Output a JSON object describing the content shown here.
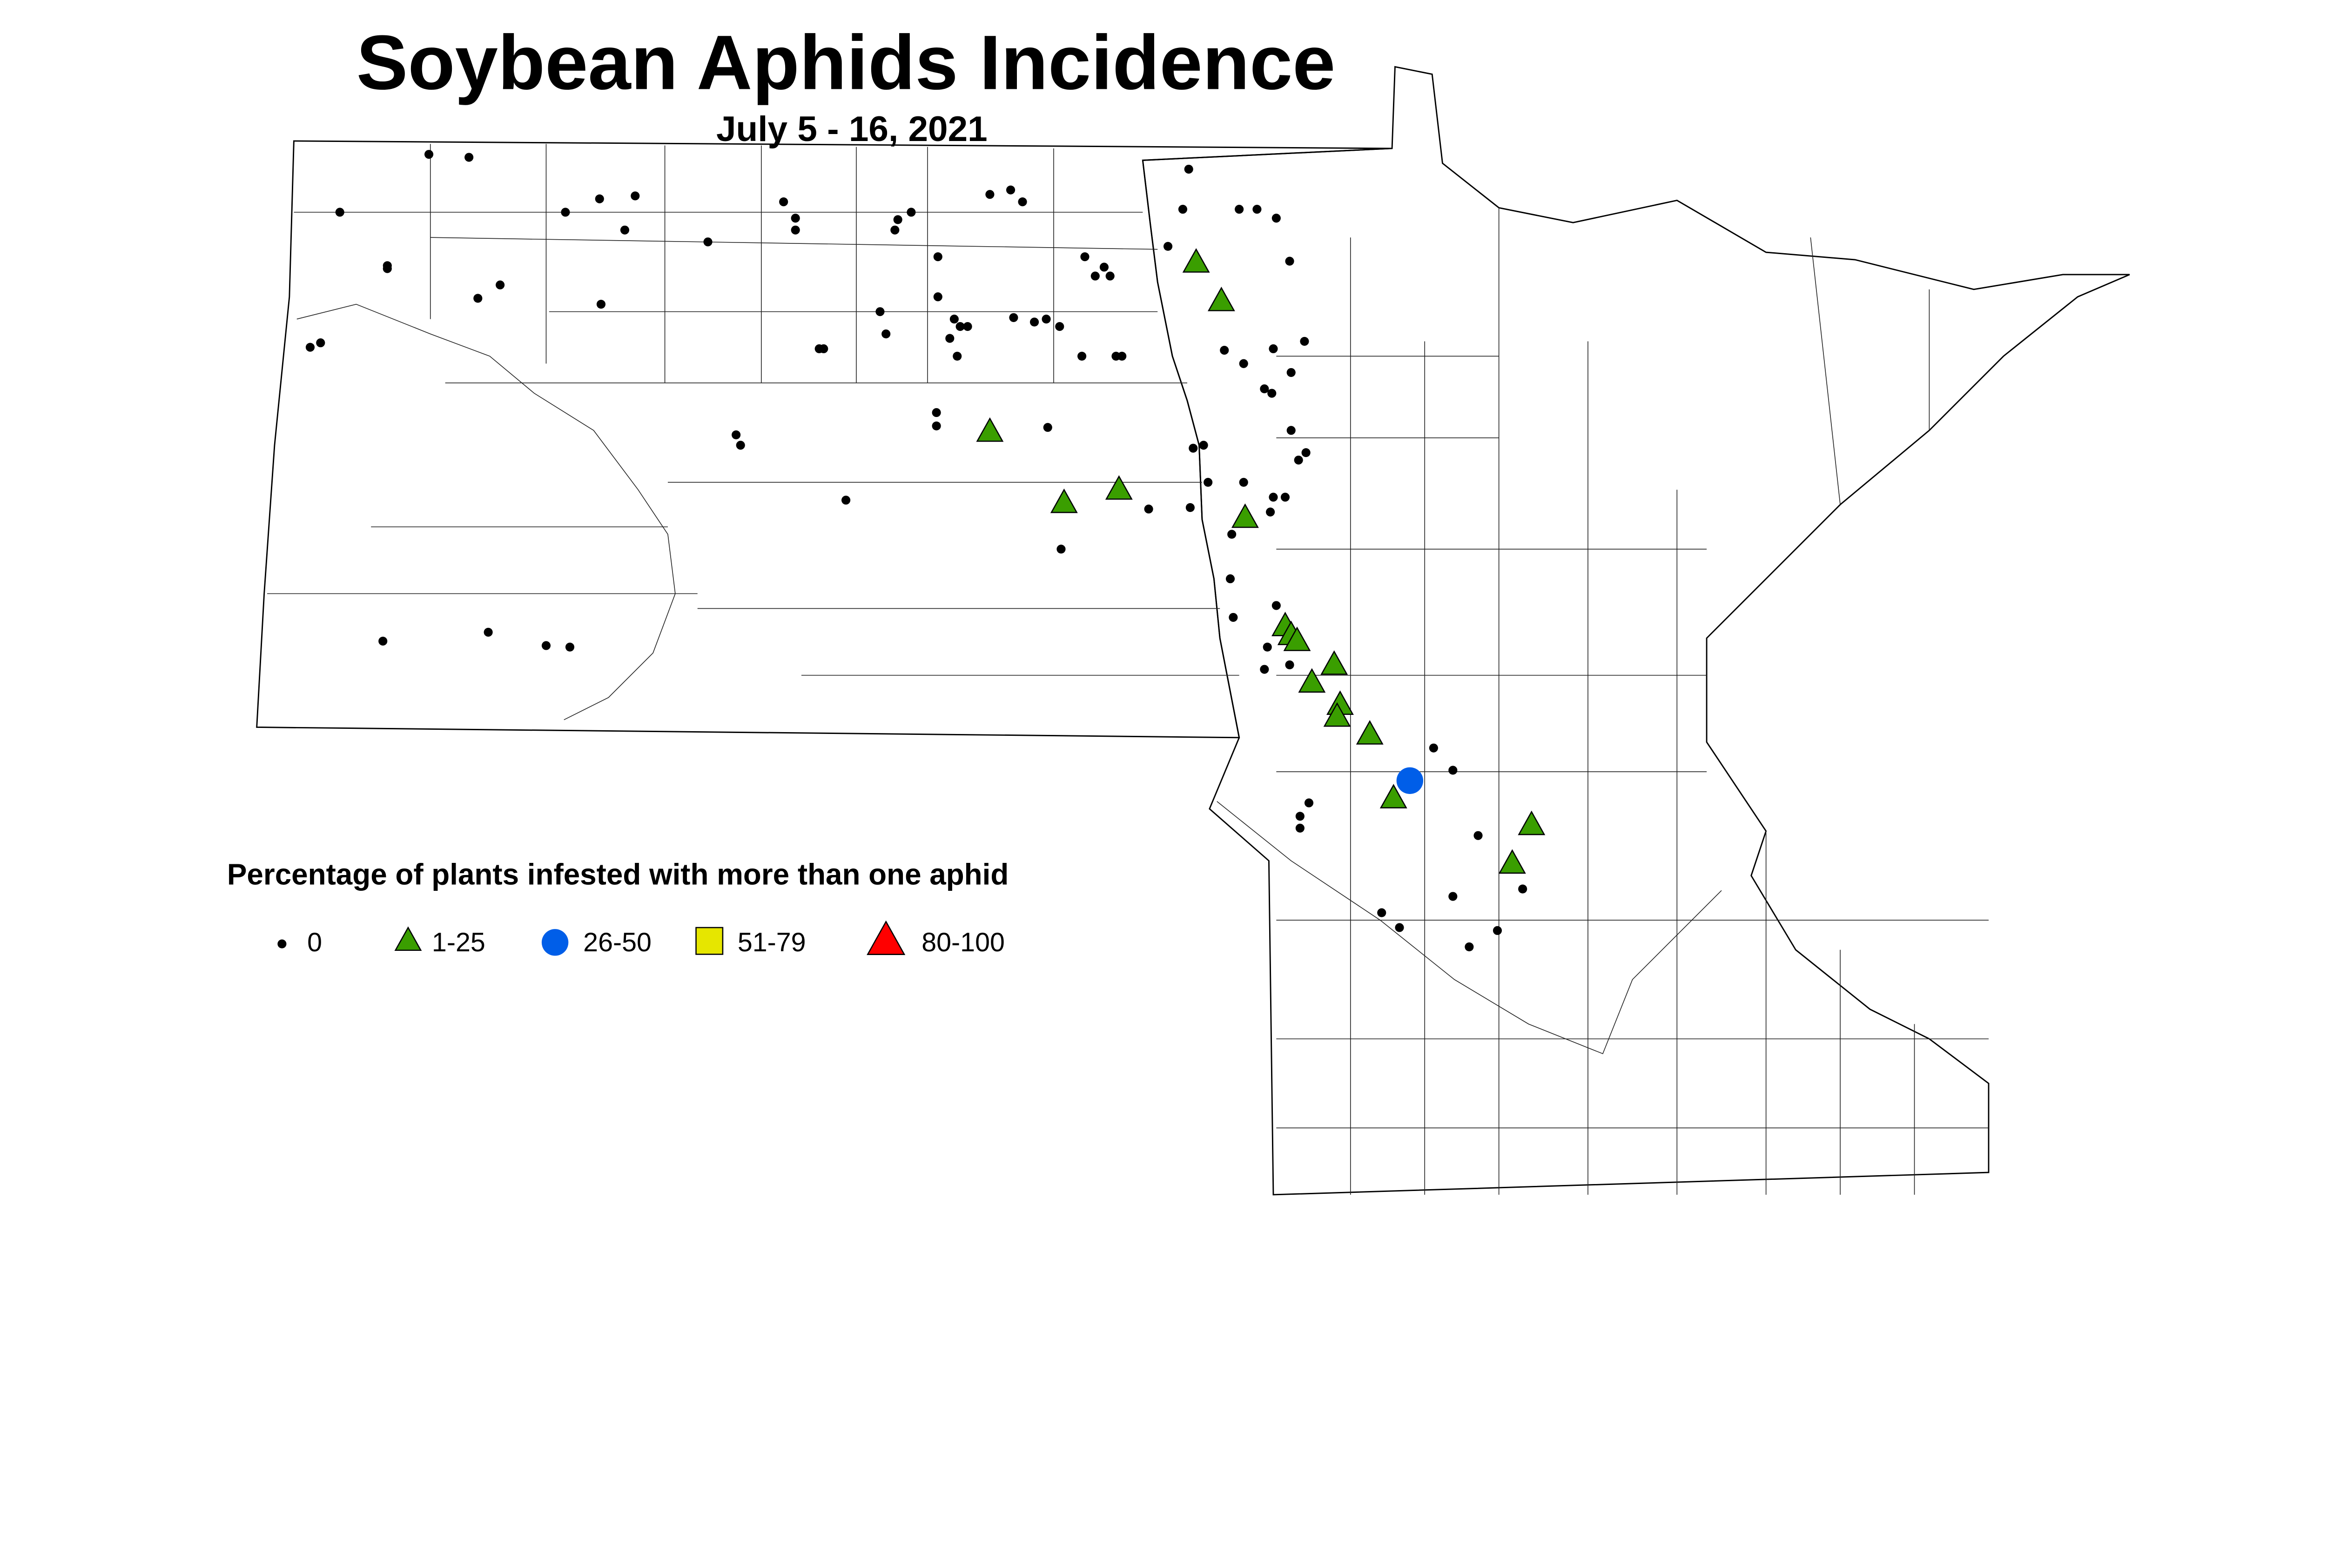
{
  "title": "Soybean Aphids Incidence",
  "subtitle": "July 5 - 16, 2021",
  "legend": {
    "title": "Percentage of plants infested with more than one aphid",
    "items": [
      {
        "label": "0",
        "symbol": "dot",
        "color": "#000000"
      },
      {
        "label": "1-25",
        "symbol": "triangle",
        "color": "#3a9e00"
      },
      {
        "label": "26-50",
        "symbol": "circle",
        "color": "#005ee8"
      },
      {
        "label": "51-79",
        "symbol": "square",
        "color": "#e6e600"
      },
      {
        "label": "80-100",
        "symbol": "triangle",
        "color": "#ff0000"
      }
    ]
  }
}
